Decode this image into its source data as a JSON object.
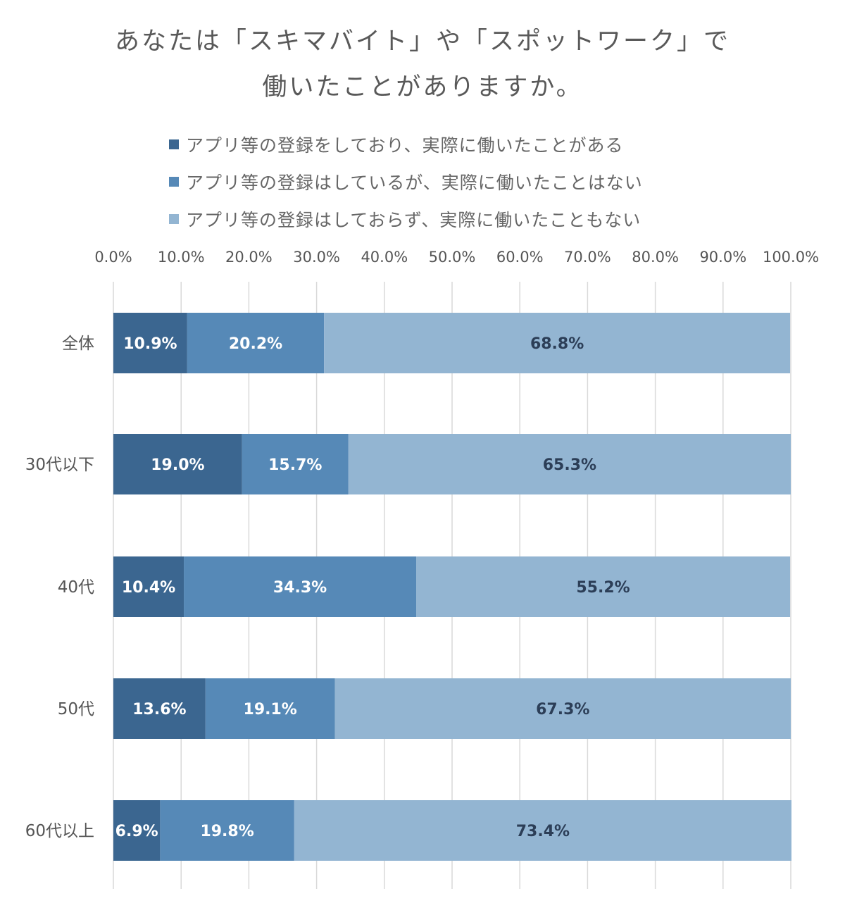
{
  "chart_data": {
    "type": "bar",
    "orientation": "horizontal",
    "stacked": true,
    "title_line1": "あなたは「スキマバイト」や「スポットワーク」で",
    "title_line2": "働いたことがありますか。",
    "categories": [
      "全体",
      "30代以下",
      "40代",
      "50代",
      "60代以上"
    ],
    "series": [
      {
        "name": "アプリ等の登録をしており、実際に働いたことがある",
        "color": "#3b6690",
        "label_color": "#ffffff",
        "values": [
          10.9,
          19.0,
          10.4,
          13.6,
          6.9
        ]
      },
      {
        "name": "アプリ等の登録はしているが、実際に働いたことはない",
        "color": "#5689b7",
        "label_color": "#ffffff",
        "values": [
          20.2,
          15.7,
          34.3,
          19.1,
          19.8
        ]
      },
      {
        "name": "アプリ等の登録はしておらず、実際に働いたこともない",
        "color": "#93b5d2",
        "label_color": "#2c3e57",
        "values": [
          68.8,
          65.3,
          55.2,
          67.3,
          73.4
        ]
      }
    ],
    "xlim": [
      0,
      100
    ],
    "xticks": [
      "0.0%",
      "10.0%",
      "20.0%",
      "30.0%",
      "40.0%",
      "50.0%",
      "60.0%",
      "70.0%",
      "80.0%",
      "90.0%",
      "100.0%"
    ],
    "xaxis_position": "top",
    "grid": true,
    "legend_position": "top"
  }
}
